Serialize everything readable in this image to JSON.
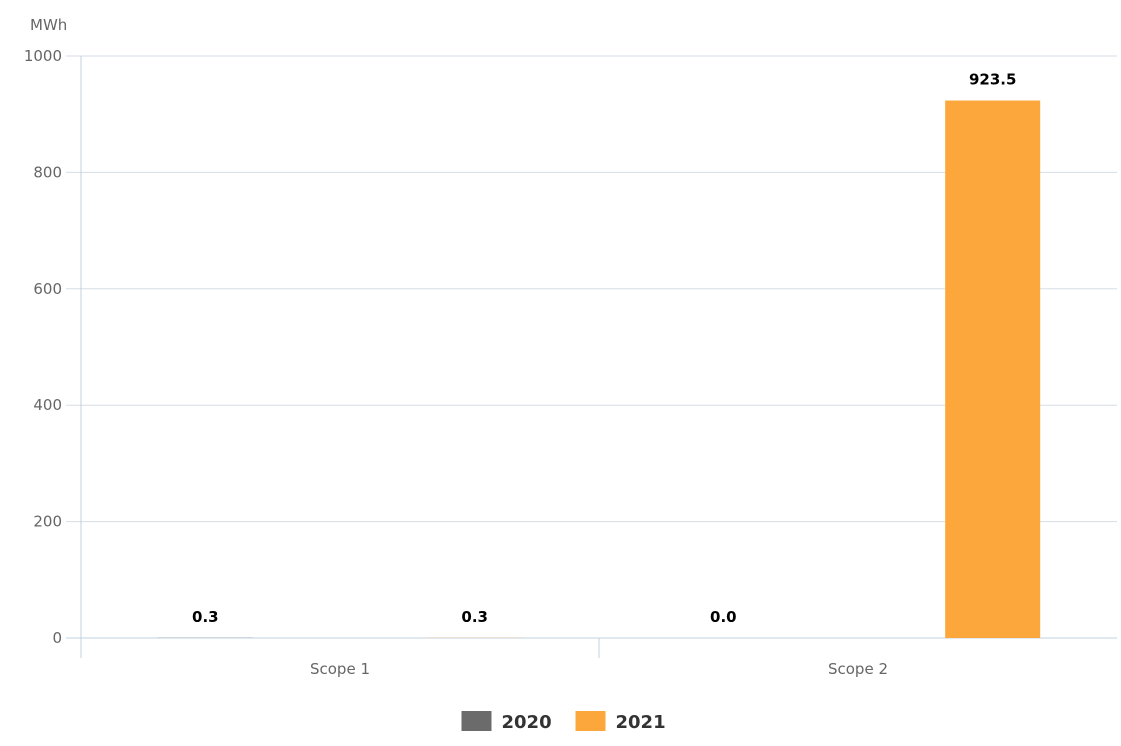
{
  "chart_data": {
    "type": "bar",
    "ylabel": "MWh",
    "ylim": [
      0,
      1000
    ],
    "yticks": [
      0,
      200,
      400,
      600,
      800,
      1000
    ],
    "categories": [
      "Scope 1",
      "Scope 2"
    ],
    "series": [
      {
        "name": "2020",
        "color": "#6b6b6b",
        "values": [
          0.3,
          0.0
        ]
      },
      {
        "name": "2021",
        "color": "#fca73b",
        "values": [
          0.3,
          923.5
        ]
      }
    ],
    "data_labels": [
      [
        "0.3",
        "0.0"
      ],
      [
        "0.3",
        "923.5"
      ]
    ],
    "grid": true,
    "legend": "bottom-center"
  }
}
